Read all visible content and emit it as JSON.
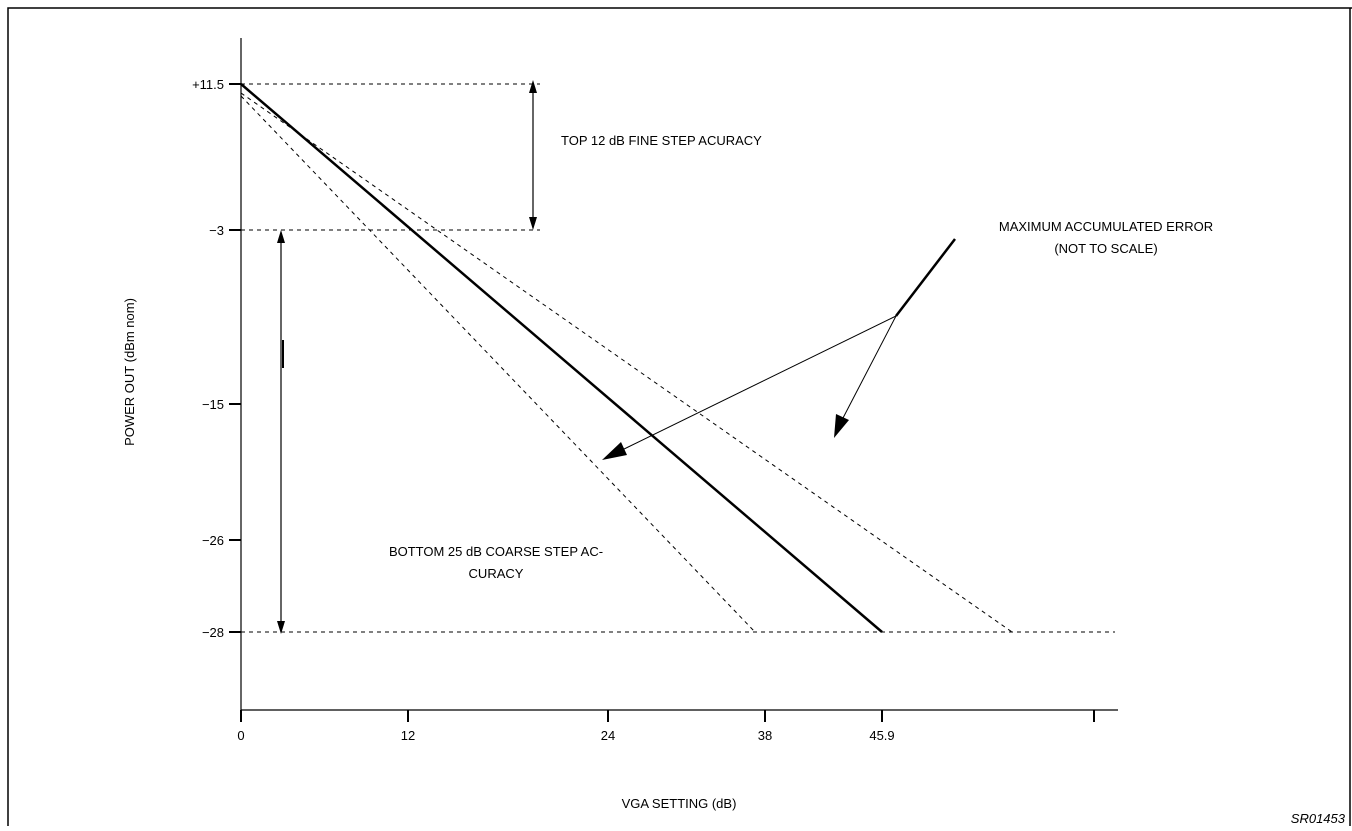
{
  "y_axis": {
    "label": "POWER OUT (dBm nom)",
    "ticks": [
      "+11.5",
      "−3",
      "−15",
      "−26",
      "−28"
    ]
  },
  "x_axis": {
    "label": "VGA SETTING (dB)",
    "ticks": [
      "0",
      "12",
      "24",
      "38",
      "45.9",
      ""
    ]
  },
  "annotations": {
    "top": "TOP 12 dB FINE STEP ACURACY",
    "bottom_line1": "BOTTOM 25 dB COARSE STEP AC-",
    "bottom_line2": "CURACY",
    "error_line1": "MAXIMUM ACCUMULATED ERROR",
    "error_line2": "(NOT TO SCALE)"
  },
  "figure_code": "SR01453"
}
